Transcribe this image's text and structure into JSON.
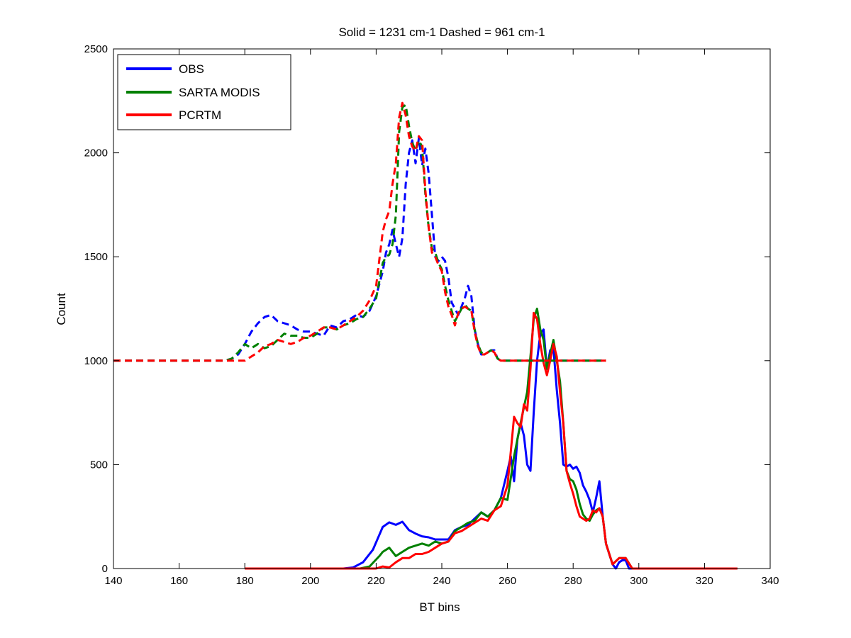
{
  "chart_data": {
    "type": "line",
    "title": "Solid = 1231 cm-1  Dashed = 961 cm-1",
    "xlabel": "BT bins",
    "ylabel": "Count",
    "xlim": [
      140,
      340
    ],
    "ylim": [
      0,
      2500
    ],
    "xticks": [
      140,
      160,
      180,
      200,
      220,
      240,
      260,
      280,
      300,
      320,
      340
    ],
    "yticks": [
      0,
      500,
      1000,
      1500,
      2000,
      2500
    ],
    "grid": false,
    "legend": {
      "location": "top-left",
      "entries": [
        {
          "label": "OBS",
          "color": "#0000ff"
        },
        {
          "label": "SARTA MODIS",
          "color": "#008000"
        },
        {
          "label": "PCRTM",
          "color": "#ff0000"
        }
      ]
    },
    "series": [
      {
        "name": "OBS",
        "line_style": "solid",
        "color": "#0000ff",
        "x": [
          180,
          210,
          213,
          216,
          219,
          222,
          224,
          226,
          228,
          230,
          232,
          234,
          236,
          238,
          240,
          242,
          244,
          246,
          248,
          250,
          252,
          254,
          256,
          258,
          260,
          261,
          262,
          263,
          264,
          265,
          266,
          267,
          268,
          269,
          270,
          271,
          272,
          273,
          274,
          275,
          276,
          277,
          278,
          279,
          280,
          281,
          282,
          283,
          284,
          285,
          286,
          287,
          288,
          289,
          290,
          291,
          292,
          293,
          294,
          295,
          296,
          297,
          298,
          300,
          330
        ],
        "y": [
          0,
          0,
          5,
          30,
          90,
          200,
          222,
          210,
          225,
          185,
          168,
          155,
          150,
          140,
          140,
          140,
          185,
          200,
          210,
          240,
          270,
          250,
          280,
          340,
          470,
          540,
          420,
          620,
          700,
          640,
          500,
          470,
          750,
          1000,
          1130,
          1150,
          960,
          1050,
          1060,
          860,
          700,
          500,
          490,
          500,
          480,
          490,
          460,
          400,
          370,
          330,
          270,
          340,
          420,
          250,
          120,
          70,
          20,
          0,
          30,
          40,
          40,
          0,
          0,
          0,
          0
        ]
      },
      {
        "name": "SARTA MODIS",
        "line_style": "solid",
        "color": "#008000",
        "x": [
          180,
          215,
          218,
          221,
          222,
          224,
          226,
          228,
          230,
          232,
          234,
          236,
          238,
          240,
          242,
          244,
          246,
          248,
          250,
          252,
          254,
          256,
          258,
          260,
          262,
          264,
          266,
          267,
          268,
          269,
          270,
          271,
          272,
          273,
          274,
          275,
          276,
          277,
          278,
          279,
          280,
          281,
          282,
          283,
          284,
          285,
          286,
          287,
          288,
          289,
          290,
          292,
          294,
          296,
          298,
          300,
          330
        ],
        "y": [
          0,
          0,
          10,
          60,
          80,
          100,
          60,
          80,
          100,
          110,
          120,
          110,
          130,
          120,
          130,
          180,
          200,
          220,
          230,
          270,
          250,
          280,
          340,
          330,
          540,
          700,
          850,
          1020,
          1200,
          1250,
          1150,
          1100,
          960,
          1030,
          1100,
          1000,
          900,
          700,
          470,
          430,
          420,
          380,
          310,
          260,
          240,
          230,
          260,
          280,
          290,
          250,
          120,
          20,
          50,
          50,
          0,
          0,
          0
        ]
      },
      {
        "name": "PCRTM",
        "line_style": "solid",
        "color": "#ff0000",
        "x": [
          180,
          220,
          222,
          224,
          226,
          228,
          230,
          232,
          234,
          236,
          238,
          240,
          242,
          244,
          246,
          248,
          250,
          252,
          254,
          256,
          258,
          260,
          261,
          262,
          263,
          264,
          265,
          266,
          267,
          268,
          269,
          270,
          271,
          272,
          273,
          274,
          275,
          276,
          277,
          278,
          279,
          280,
          281,
          282,
          283,
          284,
          285,
          286,
          287,
          288,
          289,
          290,
          292,
          294,
          296,
          298,
          300,
          330
        ],
        "y": [
          0,
          0,
          10,
          5,
          30,
          50,
          50,
          70,
          70,
          80,
          100,
          120,
          130,
          170,
          180,
          200,
          220,
          240,
          230,
          280,
          300,
          400,
          560,
          730,
          700,
          680,
          790,
          760,
          960,
          1230,
          1200,
          1080,
          990,
          930,
          1000,
          1080,
          1020,
          850,
          700,
          470,
          410,
          360,
          300,
          250,
          240,
          230,
          240,
          280,
          270,
          290,
          250,
          120,
          20,
          50,
          50,
          0,
          0,
          0
        ]
      },
      {
        "name": "OBS",
        "line_style": "dashed",
        "color": "#0000ff",
        "x": [
          140,
          170,
          174,
          176,
          178,
          180,
          182,
          184,
          186,
          188,
          190,
          192,
          194,
          196,
          198,
          200,
          202,
          204,
          206,
          208,
          210,
          212,
          214,
          216,
          218,
          220,
          222,
          223,
          224,
          225,
          226,
          227,
          228,
          229,
          230,
          231,
          232,
          233,
          234,
          235,
          236,
          237,
          238,
          239,
          240,
          241,
          242,
          243,
          244,
          245,
          246,
          247,
          248,
          249,
          250,
          251,
          252,
          253,
          254,
          255,
          256,
          257,
          258,
          260,
          290
        ],
        "y": [
          1000,
          1000,
          1000,
          1010,
          1030,
          1080,
          1140,
          1180,
          1210,
          1220,
          1190,
          1180,
          1170,
          1150,
          1140,
          1140,
          1130,
          1120,
          1170,
          1160,
          1190,
          1200,
          1220,
          1210,
          1240,
          1310,
          1430,
          1520,
          1560,
          1630,
          1560,
          1500,
          1590,
          1850,
          2000,
          2060,
          1950,
          2070,
          1940,
          2020,
          1900,
          1700,
          1500,
          1480,
          1500,
          1480,
          1400,
          1280,
          1250,
          1220,
          1260,
          1300,
          1360,
          1310,
          1150,
          1080,
          1030,
          1030,
          1040,
          1050,
          1050,
          1010,
          1000,
          1000,
          1000
        ]
      },
      {
        "name": "SARTA MODIS",
        "line_style": "dashed",
        "color": "#008000",
        "x": [
          140,
          170,
          174,
          176,
          178,
          180,
          182,
          184,
          186,
          188,
          190,
          192,
          194,
          196,
          198,
          200,
          202,
          204,
          206,
          208,
          210,
          212,
          214,
          216,
          218,
          220,
          222,
          223,
          224,
          225,
          226,
          227,
          228,
          229,
          230,
          231,
          232,
          233,
          234,
          235,
          236,
          237,
          238,
          239,
          240,
          241,
          242,
          243,
          244,
          245,
          246,
          247,
          248,
          249,
          250,
          251,
          252,
          253,
          254,
          255,
          256,
          257,
          258,
          260,
          290
        ],
        "y": [
          1000,
          1000,
          1000,
          1010,
          1040,
          1080,
          1060,
          1080,
          1060,
          1070,
          1100,
          1130,
          1120,
          1120,
          1110,
          1110,
          1130,
          1160,
          1160,
          1150,
          1170,
          1180,
          1200,
          1210,
          1250,
          1300,
          1470,
          1500,
          1510,
          1560,
          1700,
          2100,
          2220,
          2230,
          2130,
          2050,
          2010,
          2060,
          2030,
          1800,
          1640,
          1540,
          1520,
          1470,
          1440,
          1360,
          1290,
          1240,
          1190,
          1220,
          1250,
          1270,
          1250,
          1240,
          1150,
          1080,
          1040,
          1030,
          1040,
          1050,
          1040,
          1010,
          1000,
          1000,
          1000
        ]
      },
      {
        "name": "PCRTM",
        "line_style": "dashed",
        "color": "#ff0000",
        "x": [
          140,
          170,
          174,
          176,
          178,
          180,
          182,
          184,
          186,
          188,
          190,
          192,
          194,
          196,
          198,
          200,
          202,
          204,
          206,
          208,
          210,
          212,
          214,
          216,
          218,
          220,
          222,
          223,
          224,
          225,
          226,
          227,
          228,
          229,
          230,
          231,
          232,
          233,
          234,
          235,
          236,
          237,
          238,
          239,
          240,
          241,
          242,
          243,
          244,
          245,
          246,
          247,
          248,
          249,
          250,
          251,
          252,
          253,
          254,
          255,
          256,
          257,
          258,
          260,
          290
        ],
        "y": [
          1000,
          1000,
          1000,
          1000,
          1000,
          1000,
          1020,
          1040,
          1070,
          1080,
          1100,
          1090,
          1080,
          1090,
          1110,
          1120,
          1140,
          1160,
          1160,
          1150,
          1170,
          1190,
          1210,
          1240,
          1290,
          1360,
          1620,
          1680,
          1720,
          1850,
          1950,
          2170,
          2240,
          2180,
          2080,
          2030,
          2010,
          2080,
          2060,
          1820,
          1640,
          1520,
          1500,
          1460,
          1430,
          1330,
          1260,
          1220,
          1170,
          1230,
          1250,
          1260,
          1250,
          1240,
          1140,
          1070,
          1030,
          1030,
          1040,
          1050,
          1040,
          1010,
          1000,
          1000,
          1000
        ]
      }
    ]
  }
}
